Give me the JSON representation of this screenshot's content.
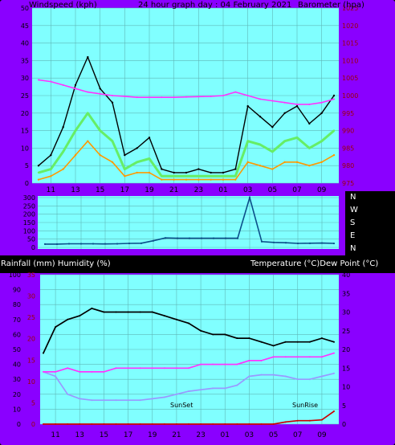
{
  "chart_data": [
    {
      "type": "line",
      "title": "24 hour graph day : 04 February 2021",
      "ylabel_left": "Windspeed (kph)",
      "ylabel_right": "Barometer (hpa)",
      "ylim_left": [
        0,
        50
      ],
      "ylim_right": [
        975,
        1025
      ],
      "left_ticks": [
        "0",
        "5",
        "10",
        "15",
        "20",
        "25",
        "30",
        "35",
        "40",
        "45",
        "50"
      ],
      "right_ticks": [
        "975",
        "980",
        "985",
        "990",
        "995",
        "1000",
        "1005",
        "1010",
        "1015",
        "1020",
        "1025"
      ],
      "x_ticks": [
        "11",
        "13",
        "15",
        "17",
        "19",
        "21",
        "23",
        "01",
        "03",
        "05",
        "07",
        "09"
      ],
      "x": [
        10,
        11,
        12,
        13,
        14,
        15,
        16,
        17,
        18,
        19,
        20,
        21,
        22,
        23,
        24,
        25,
        26,
        27,
        28,
        29,
        30,
        31,
        32,
        33,
        34
      ],
      "series": [
        {
          "values": [
            5,
            8,
            16,
            28,
            36,
            27,
            23,
            8,
            10,
            13,
            4,
            3,
            3,
            4,
            3,
            3,
            4,
            22,
            19,
            16,
            20,
            22,
            17,
            20,
            25
          ]
        },
        {
          "values": [
            3,
            4,
            9,
            15,
            20,
            15,
            12,
            4,
            6,
            7,
            2,
            2,
            2,
            2,
            2,
            2,
            2,
            12,
            11,
            9,
            12,
            13,
            10,
            12,
            15
          ]
        },
        {
          "values": [
            1,
            2,
            4,
            8,
            12,
            8,
            6,
            2,
            3,
            3,
            1,
            1,
            1,
            1,
            1,
            1,
            1,
            6,
            5,
            4,
            6,
            6,
            5,
            6,
            8
          ]
        },
        {
          "values": [
            1004.5,
            1004,
            1003,
            1002,
            1001,
            1000.5,
            1000,
            999.8,
            999.5,
            999.5,
            999.5,
            999.5,
            999.6,
            999.7,
            999.8,
            1000,
            1001,
            1000,
            999,
            998.5,
            998,
            997.5,
            997.5,
            998,
            999
          ]
        }
      ]
    },
    {
      "type": "line",
      "left_ticks": [
        "0",
        "50",
        "100",
        "150",
        "200",
        "250",
        "300"
      ],
      "direction_labels": [
        "N",
        "W",
        "S",
        "E",
        "N"
      ],
      "x_ticks": [
        "11",
        "13",
        "15",
        "17",
        "19",
        "21",
        "23",
        "01",
        "03",
        "05",
        "07",
        "09"
      ],
      "x": [
        10,
        11,
        12,
        13,
        14,
        15,
        16,
        17,
        18,
        19,
        20,
        21,
        22,
        23,
        24,
        25,
        26,
        27,
        28,
        29,
        30,
        31,
        32,
        33,
        34
      ],
      "series": [
        {
          "values": [
            20,
            20,
            22,
            22,
            22,
            21,
            22,
            24,
            25,
            40,
            57,
            55,
            55,
            55,
            55,
            55,
            55,
            300,
            35,
            30,
            28,
            24,
            25,
            26,
            24
          ]
        }
      ]
    },
    {
      "type": "line",
      "ylabel_left": "Rainfall (mm)  Humidity (%)",
      "ylabel_right": "Temperature (°C)Dew Point (°C)",
      "humidity_ticks": [
        "0",
        "10",
        "20",
        "30",
        "40",
        "50",
        "60",
        "70",
        "80",
        "90",
        "100"
      ],
      "rainfall_ticks": [
        "0",
        "5",
        "10",
        "15",
        "20",
        "25",
        "30",
        "35"
      ],
      "temp_ticks": [
        "0",
        "5",
        "10",
        "15",
        "20",
        "25",
        "30",
        "35",
        "40"
      ],
      "x_ticks": [
        "11",
        "13",
        "15",
        "17",
        "19",
        "21",
        "23",
        "01",
        "03",
        "05",
        "07",
        "09"
      ],
      "annotations": [
        "SunSet",
        "SunRise"
      ],
      "ylim_humidity": [
        0,
        100
      ],
      "ylim_temp": [
        0,
        40
      ],
      "x": [
        10,
        11,
        12,
        13,
        14,
        15,
        16,
        17,
        18,
        19,
        20,
        21,
        22,
        23,
        24,
        25,
        26,
        27,
        28,
        29,
        30,
        31,
        32,
        33,
        34
      ],
      "series": [
        {
          "values": [
            19,
            26,
            28,
            29,
            31,
            30,
            30,
            30,
            30,
            30,
            29,
            28,
            27,
            25,
            24,
            24,
            23,
            23,
            22,
            21,
            22,
            22,
            22,
            23,
            22
          ]
        },
        {
          "values": [
            35,
            32,
            20,
            17,
            16,
            16,
            16,
            16,
            16,
            17,
            18,
            20,
            22,
            23,
            24,
            24,
            26,
            32,
            33,
            33,
            32,
            30,
            30,
            32,
            34
          ]
        },
        {
          "values": [
            14,
            14,
            15,
            14,
            14,
            14,
            15,
            15,
            15,
            15,
            15,
            15,
            15,
            16,
            16,
            16,
            16,
            17,
            17,
            18,
            18,
            18,
            18,
            18,
            19
          ]
        },
        {
          "values": [
            0,
            0,
            0,
            0,
            0,
            0,
            0,
            0,
            0,
            0,
            0,
            0,
            0,
            0,
            0,
            0,
            0,
            0,
            0,
            0,
            0.5,
            0.8,
            0.8,
            1,
            3
          ]
        }
      ]
    }
  ]
}
